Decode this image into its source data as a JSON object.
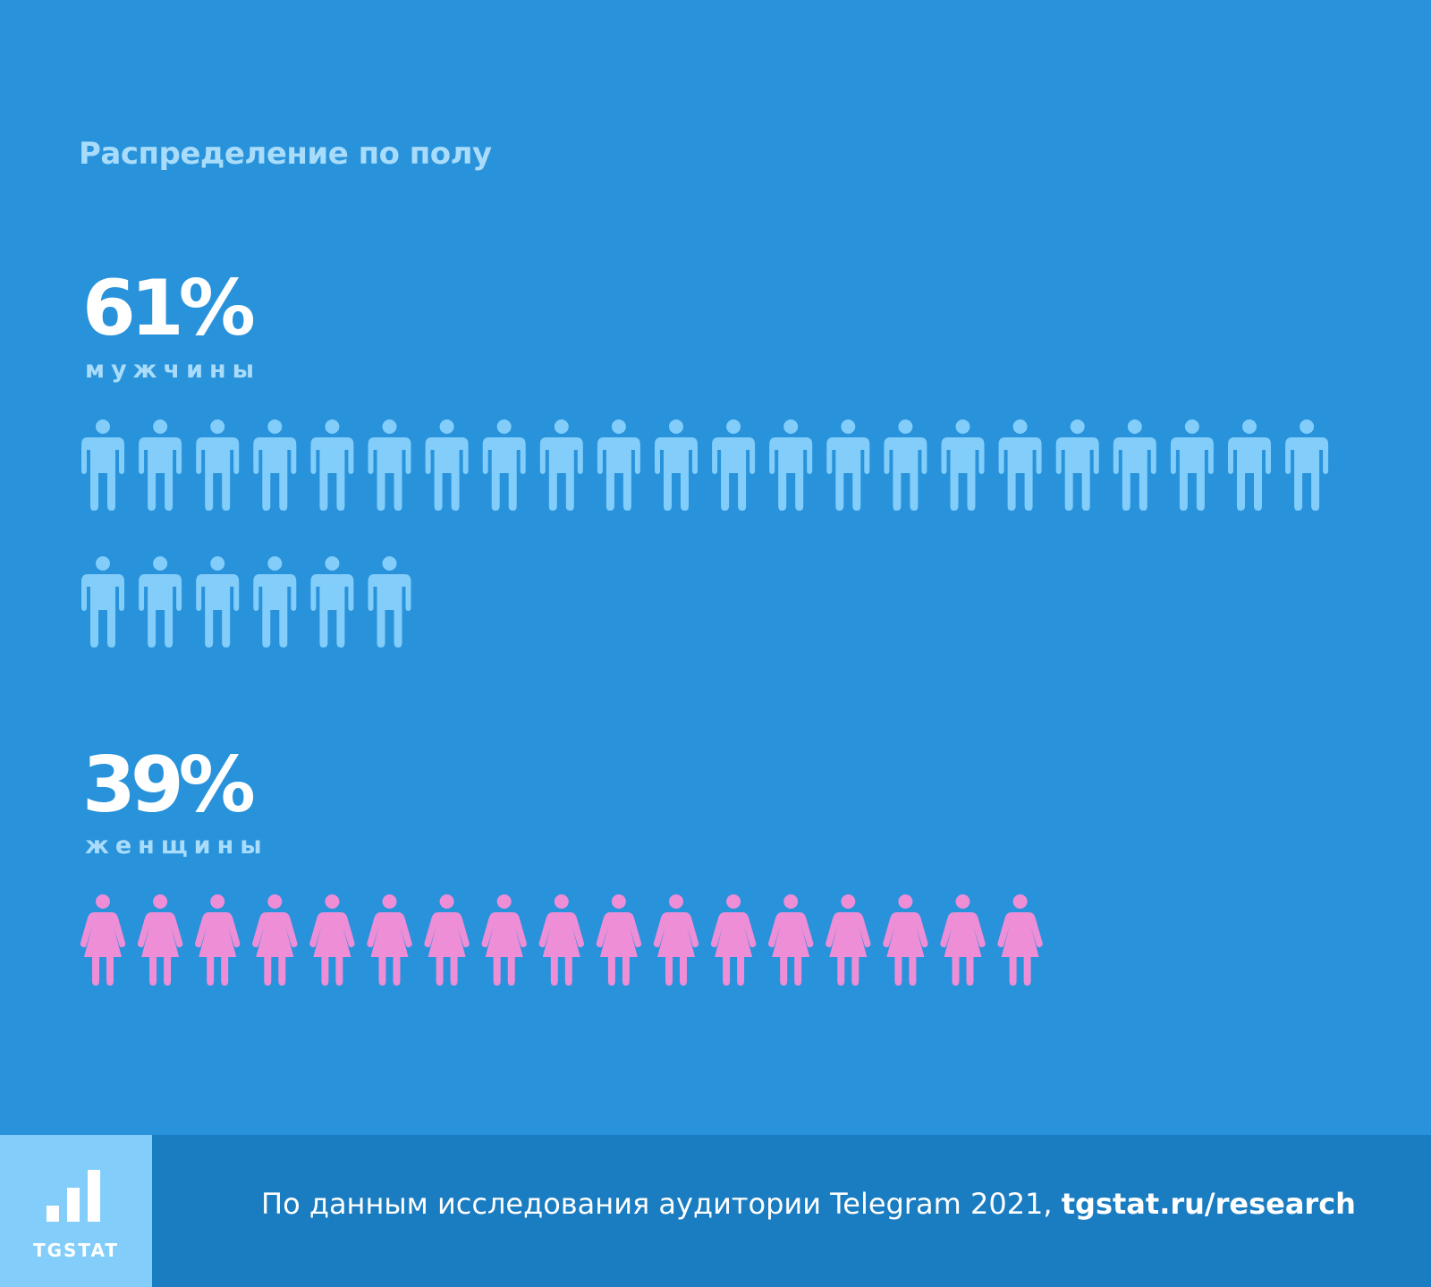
{
  "title": "Распределение по полу",
  "chart_data": {
    "type": "pictograph",
    "series": [
      {
        "name": "мужчины",
        "percent": 61,
        "label": "61%",
        "icon_count": 28,
        "icons_per_row": 22,
        "color": "#82cdfa"
      },
      {
        "name": "женщины",
        "percent": 39,
        "label": "39%",
        "icon_count": 17,
        "icons_per_row": 22,
        "color": "#ed8ed6"
      }
    ]
  },
  "footer": {
    "logo": "TGSTAT",
    "text": "По данным исследования аудитории Telegram 2021,",
    "link": "tgstat.ru/research"
  }
}
